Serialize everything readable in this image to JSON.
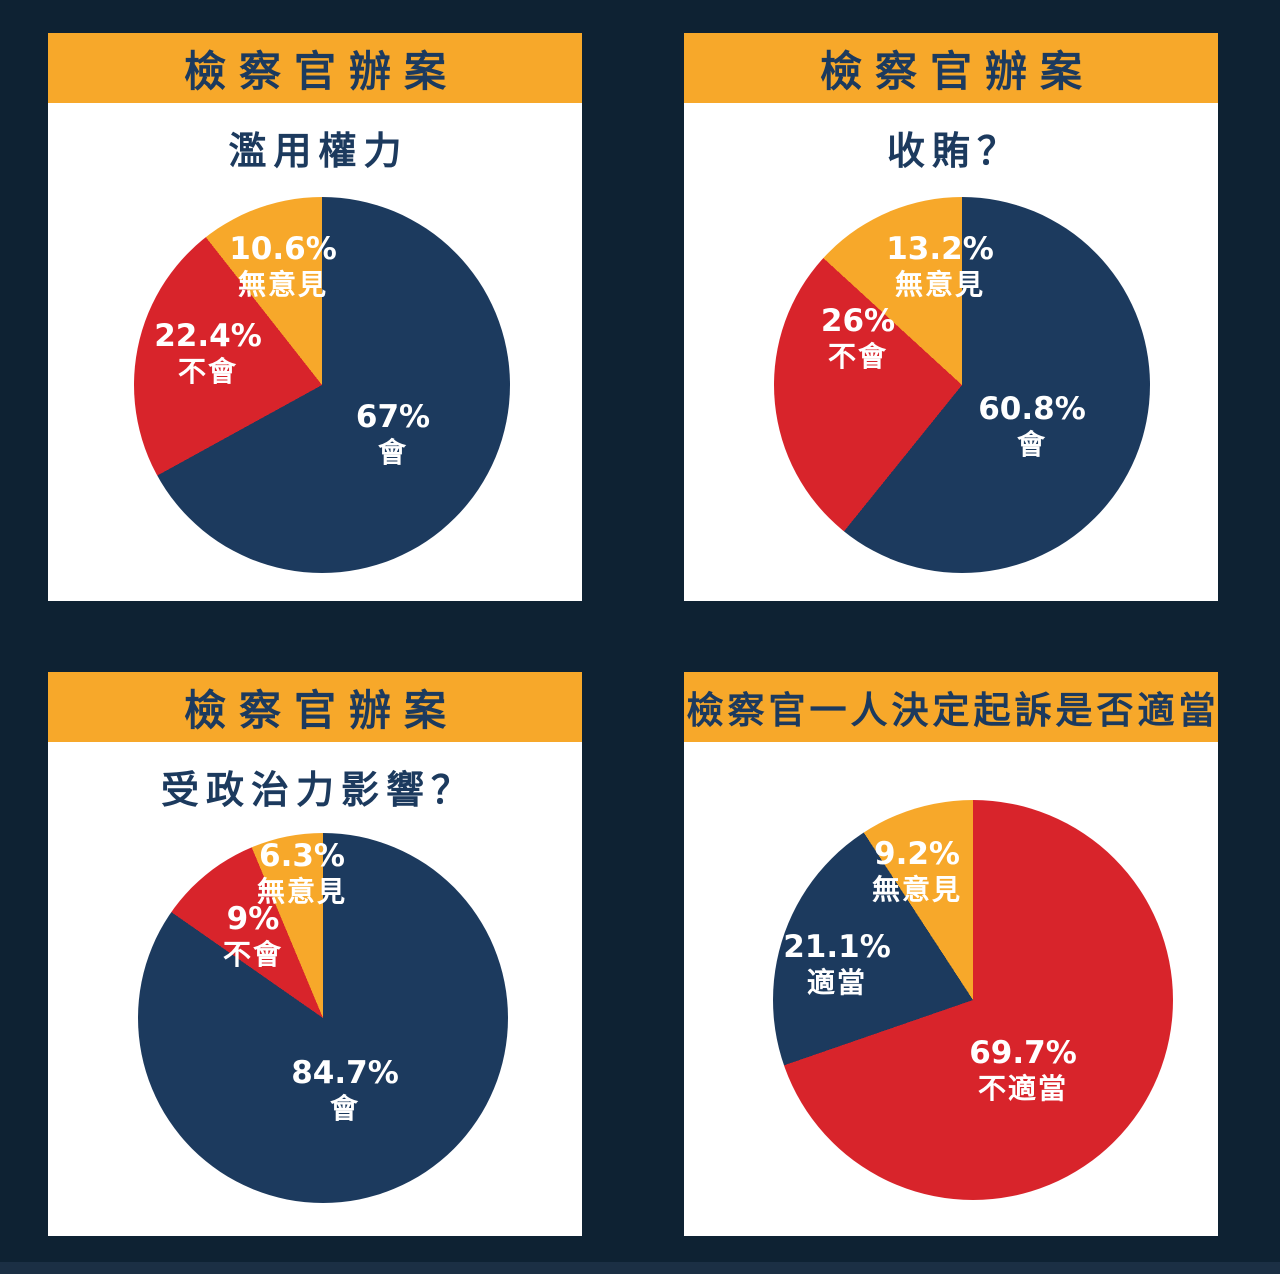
{
  "colors": {
    "page_bg": "#0E2233",
    "bottom_strip": "#1B2F44",
    "card_bg": "#FFFFFF",
    "header_bg": "#F7A82A",
    "navy": "#1C3A5E",
    "red": "#D8242B",
    "yellow": "#F7A82A",
    "label_text": "#FFFFFF"
  },
  "chart_data": [
    {
      "type": "pie",
      "title": "檢察官辦案",
      "subtitle": "濫用權力",
      "start_angle_deg": 0,
      "direction": "clockwise",
      "labels_position": "inside",
      "legend": "none",
      "slices": [
        {
          "label": "會",
          "value": 67,
          "display": "67%",
          "color_key": "navy"
        },
        {
          "label": "不會",
          "value": 22.4,
          "display": "22.4%",
          "color_key": "red"
        },
        {
          "label": "無意見",
          "value": 10.6,
          "display": "10.6%",
          "color_key": "yellow"
        }
      ]
    },
    {
      "type": "pie",
      "title": "檢察官辦案",
      "subtitle": "收賄？",
      "start_angle_deg": 0,
      "direction": "clockwise",
      "labels_position": "inside",
      "legend": "none",
      "slices": [
        {
          "label": "會",
          "value": 60.8,
          "display": "60.8%",
          "color_key": "navy"
        },
        {
          "label": "不會",
          "value": 26,
          "display": "26%",
          "color_key": "red"
        },
        {
          "label": "無意見",
          "value": 13.2,
          "display": "13.2%",
          "color_key": "yellow"
        }
      ]
    },
    {
      "type": "pie",
      "title": "檢察官辦案",
      "subtitle": "受政治力影響？",
      "start_angle_deg": 0,
      "direction": "clockwise",
      "labels_position": "inside",
      "legend": "none",
      "slices": [
        {
          "label": "會",
          "value": 84.7,
          "display": "84.7%",
          "color_key": "navy"
        },
        {
          "label": "不會",
          "value": 9,
          "display": "9%",
          "color_key": "red"
        },
        {
          "label": "無意見",
          "value": 6.3,
          "display": "6.3%",
          "color_key": "yellow"
        }
      ]
    },
    {
      "type": "pie",
      "title": "檢察官一人決定起訴是否適當",
      "subtitle": "",
      "start_angle_deg": 0,
      "direction": "clockwise",
      "labels_position": "inside",
      "legend": "none",
      "slices": [
        {
          "label": "不適當",
          "value": 69.7,
          "display": "69.7%",
          "color_key": "red"
        },
        {
          "label": "適當",
          "value": 21.1,
          "display": "21.1%",
          "color_key": "navy"
        },
        {
          "label": "無意見",
          "value": 9.2,
          "display": "9.2%",
          "color_key": "yellow"
        }
      ]
    }
  ]
}
